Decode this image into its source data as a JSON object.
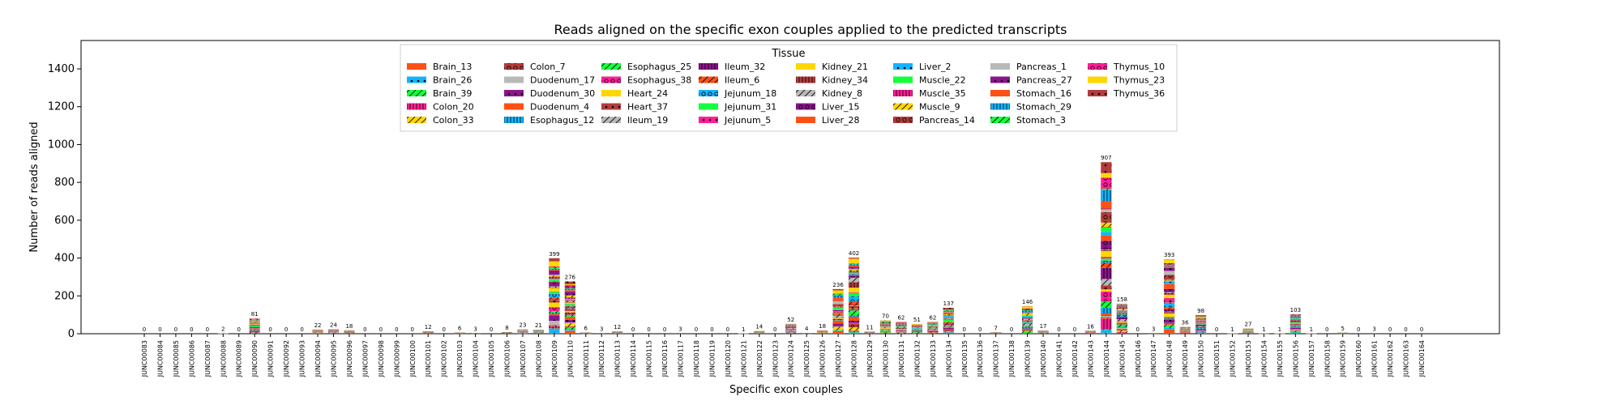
{
  "chart_data": {
    "type": "bar",
    "stacked": true,
    "title": "Reads aligned on the specific exon couples applied to the predicted transcripts",
    "xlabel": "Specific exon couples",
    "ylabel": "Number of reads aligned",
    "ylim": [
      0,
      1550
    ],
    "yticks": [
      0,
      200,
      400,
      600,
      800,
      1000,
      1200,
      1400
    ],
    "legend": {
      "title": "Tissue",
      "placement": "top-center",
      "entries": [
        {
          "name": "Brain_13",
          "color": "#ff5014",
          "hatch": ""
        },
        {
          "name": "Brain_26",
          "color": "#14b4ff",
          "hatch": "dot"
        },
        {
          "name": "Brain_39",
          "color": "#14ff3c",
          "hatch": "slash"
        },
        {
          "name": "Colon_20",
          "color": "#ff1e96",
          "hatch": "bars"
        },
        {
          "name": "Colon_33",
          "color": "#ffd700",
          "hatch": "slash"
        },
        {
          "name": "Colon_7",
          "color": "#b43c3c",
          "hatch": "circle"
        },
        {
          "name": "Duodenum_17",
          "color": "#b9b9b9",
          "hatch": ""
        },
        {
          "name": "Duodenum_30",
          "color": "#8c148c",
          "hatch": "dot"
        },
        {
          "name": "Duodenum_4",
          "color": "#ff5014",
          "hatch": ""
        },
        {
          "name": "Esophagus_12",
          "color": "#14b4ff",
          "hatch": "bars"
        },
        {
          "name": "Esophagus_25",
          "color": "#14ff3c",
          "hatch": "slash"
        },
        {
          "name": "Esophagus_38",
          "color": "#ff1e96",
          "hatch": "circle"
        },
        {
          "name": "Heart_24",
          "color": "#ffd700",
          "hatch": ""
        },
        {
          "name": "Heart_37",
          "color": "#b43c3c",
          "hatch": "dot"
        },
        {
          "name": "Ileum_19",
          "color": "#b9b9b9",
          "hatch": "slash"
        },
        {
          "name": "Ileum_32",
          "color": "#8c148c",
          "hatch": "bars"
        },
        {
          "name": "Ileum_6",
          "color": "#ff5014",
          "hatch": "slash"
        },
        {
          "name": "Jejunum_18",
          "color": "#14b4ff",
          "hatch": "circle"
        },
        {
          "name": "Jejunum_31",
          "color": "#14ff3c",
          "hatch": ""
        },
        {
          "name": "Jejunum_5",
          "color": "#ff1e96",
          "hatch": "dot"
        },
        {
          "name": "Kidney_21",
          "color": "#ffd700",
          "hatch": ""
        },
        {
          "name": "Kidney_34",
          "color": "#b43c3c",
          "hatch": "bars"
        },
        {
          "name": "Kidney_8",
          "color": "#b9b9b9",
          "hatch": "slash"
        },
        {
          "name": "Liver_15",
          "color": "#8c148c",
          "hatch": "circle"
        },
        {
          "name": "Liver_28",
          "color": "#ff5014",
          "hatch": ""
        },
        {
          "name": "Liver_2",
          "color": "#14b4ff",
          "hatch": "dot"
        },
        {
          "name": "Muscle_22",
          "color": "#14ff3c",
          "hatch": ""
        },
        {
          "name": "Muscle_35",
          "color": "#ff1e96",
          "hatch": "bars"
        },
        {
          "name": "Muscle_9",
          "color": "#ffd700",
          "hatch": "slash"
        },
        {
          "name": "Pancreas_14",
          "color": "#b43c3c",
          "hatch": "circle"
        },
        {
          "name": "Pancreas_1",
          "color": "#b9b9b9",
          "hatch": ""
        },
        {
          "name": "Pancreas_27",
          "color": "#8c148c",
          "hatch": "dot"
        },
        {
          "name": "Stomach_16",
          "color": "#ff5014",
          "hatch": ""
        },
        {
          "name": "Stomach_29",
          "color": "#14b4ff",
          "hatch": "bars"
        },
        {
          "name": "Stomach_3",
          "color": "#14ff3c",
          "hatch": "slash"
        },
        {
          "name": "Thymus_10",
          "color": "#ff1e96",
          "hatch": "circle"
        },
        {
          "name": "Thymus_23",
          "color": "#ffd700",
          "hatch": ""
        },
        {
          "name": "Thymus_36",
          "color": "#b43c3c",
          "hatch": "dot"
        }
      ]
    },
    "categories": [
      "JUNC00083",
      "JUNC00084",
      "JUNC00085",
      "JUNC00086",
      "JUNC00087",
      "JUNC00088",
      "JUNC00089",
      "JUNC00090",
      "JUNC00091",
      "JUNC00092",
      "JUNC00093",
      "JUNC00094",
      "JUNC00095",
      "JUNC00096",
      "JUNC00097",
      "JUNC00098",
      "JUNC00099",
      "JUNC00100",
      "JUNC00101",
      "JUNC00102",
      "JUNC00103",
      "JUNC00104",
      "JUNC00105",
      "JUNC00106",
      "JUNC00107",
      "JUNC00108",
      "JUNC00109",
      "JUNC00110",
      "JUNC00111",
      "JUNC00112",
      "JUNC00113",
      "JUNC00114",
      "JUNC00115",
      "JUNC00116",
      "JUNC00117",
      "JUNC00118",
      "JUNC00119",
      "JUNC00120",
      "JUNC00121",
      "JUNC00122",
      "JUNC00123",
      "JUNC00124",
      "JUNC00125",
      "JUNC00126",
      "JUNC00127",
      "JUNC00128",
      "JUNC00129",
      "JUNC00130",
      "JUNC00131",
      "JUNC00132",
      "JUNC00133",
      "JUNC00134",
      "JUNC00135",
      "JUNC00136",
      "JUNC00137",
      "JUNC00138",
      "JUNC00139",
      "JUNC00140",
      "JUNC00141",
      "JUNC00142",
      "JUNC00143",
      "JUNC00144",
      "JUNC00145",
      "JUNC00146",
      "JUNC00147",
      "JUNC00148",
      "JUNC00149",
      "JUNC00150",
      "JUNC00151",
      "JUNC00152",
      "JUNC00153",
      "JUNC00154",
      "JUNC00155",
      "JUNC00156",
      "JUNC00157",
      "JUNC00158",
      "JUNC00159",
      "JUNC00160",
      "JUNC00161",
      "JUNC00162",
      "JUNC00163",
      "JUNC00164"
    ],
    "totals": [
      0,
      0,
      0,
      0,
      0,
      2,
      0,
      81,
      0,
      0,
      0,
      22,
      24,
      18,
      0,
      0,
      0,
      0,
      12,
      0,
      6,
      3,
      0,
      8,
      23,
      21,
      399,
      276,
      6,
      3,
      12,
      0,
      0,
      0,
      3,
      0,
      0,
      0,
      1,
      14,
      0,
      52,
      4,
      18,
      236,
      402,
      11,
      70,
      62,
      51,
      62,
      137,
      0,
      0,
      7,
      0,
      146,
      17,
      0,
      0,
      16,
      907,
      158,
      0,
      3,
      393,
      36,
      98,
      0,
      1,
      27,
      1,
      1,
      103,
      1,
      0,
      5,
      0,
      3,
      0,
      0,
      0
    ]
  }
}
